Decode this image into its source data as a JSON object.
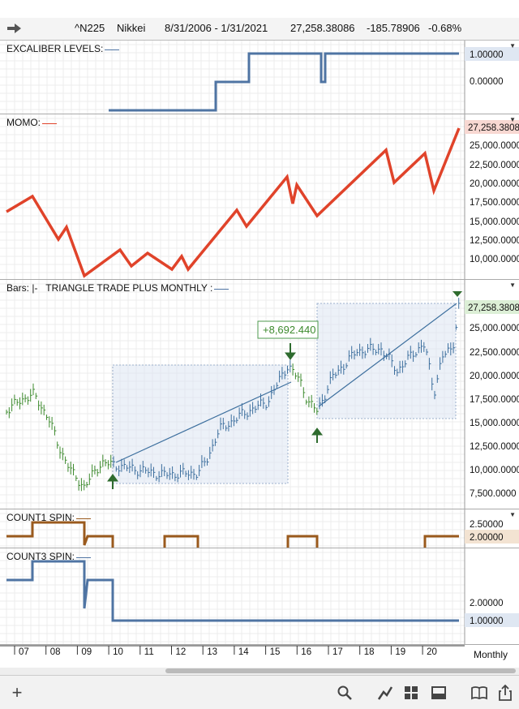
{
  "header": {
    "symbol": "^N225",
    "name": "Nikkei",
    "date_range": "8/31/2006 - 1/31/2021",
    "last": "27,258.38086",
    "change": "-185.78906",
    "change_pct": "-0.68%",
    "arrow_icon": "arrow-right-icon"
  },
  "panels": {
    "excaliber": {
      "title": "EXCALIBER LEVELS:",
      "line_color": "#4f74a3",
      "ticks": [
        "1.00000",
        "0.00000"
      ],
      "current_label": "1.00000"
    },
    "momo": {
      "title": "MOMO:",
      "line_color": "#e0432a",
      "ticks": [
        "25,000.0000",
        "22,500.0000",
        "20,000.0000",
        "17,500.0000",
        "15,000.0000",
        "12,500.0000",
        "10,000.0000"
      ],
      "current_label": "27,258.3808"
    },
    "bars": {
      "title_prefix": "Bars:",
      "title_sep": "|-",
      "title": "TRIANGLE TRADE PLUS MONTHLY :",
      "annotation": "+8,692.440",
      "ticks": [
        "25,000.0000",
        "22,500.0000",
        "20,000.0000",
        "17,500.0000",
        "15,000.0000",
        "12,500.0000",
        "10,000.0000",
        "7,500.0000"
      ],
      "current_label": "27,258.3808",
      "up_color": "#3d8a2e",
      "down_color": "#3d6f9e"
    },
    "count1": {
      "title": "COUNT1 SPIN:",
      "line_color": "#9a5a1d",
      "ticks": [
        "2.50000"
      ],
      "current_label": "2.00000"
    },
    "count3": {
      "title": "COUNT3 SPIN:",
      "line_color": "#4f74a3",
      "ticks": [
        "2.00000"
      ],
      "current_label": "1.00000"
    }
  },
  "xaxis": {
    "labels": [
      "07",
      "08",
      "09",
      "10",
      "11",
      "12",
      "13",
      "14",
      "15",
      "16",
      "17",
      "18",
      "19",
      "20"
    ],
    "period": "Monthly"
  },
  "toolbar": {
    "add_icon": "plus-icon",
    "icons": [
      "search-icon",
      "line-chart-icon",
      "grid-icon",
      "panel-icon",
      "book-icon",
      "share-icon"
    ]
  }
}
